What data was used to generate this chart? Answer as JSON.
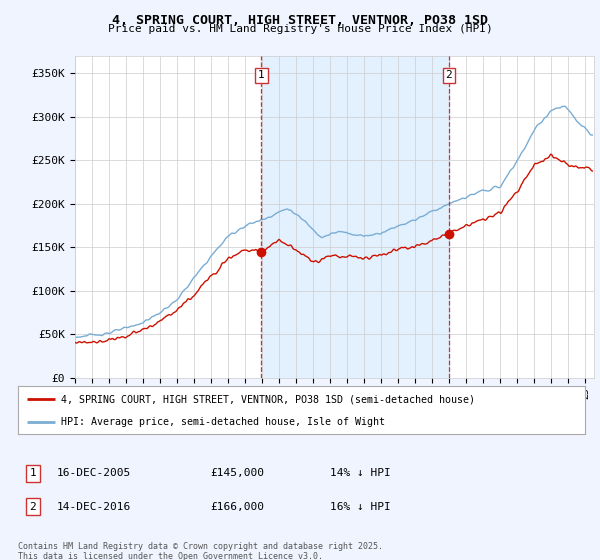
{
  "title": "4, SPRING COURT, HIGH STREET, VENTNOR, PO38 1SD",
  "subtitle": "Price paid vs. HM Land Registry's House Price Index (HPI)",
  "ylabel_ticks": [
    "£0",
    "£50K",
    "£100K",
    "£150K",
    "£200K",
    "£250K",
    "£300K",
    "£350K"
  ],
  "ytick_values": [
    0,
    50000,
    100000,
    150000,
    200000,
    250000,
    300000,
    350000
  ],
  "ylim": [
    0,
    370000
  ],
  "xlim_start": 1995.0,
  "xlim_end": 2025.5,
  "hpi_color": "#7aadd4",
  "hpi_fill_color": "#ddeeff",
  "price_color": "#cc1100",
  "dashed_color": "#cc3333",
  "marker1_year": 2005.96,
  "marker1_price": 145000,
  "marker1_label": "1",
  "marker2_year": 2016.96,
  "marker2_price": 166000,
  "marker2_label": "2",
  "legend_line1": "4, SPRING COURT, HIGH STREET, VENTNOR, PO38 1SD (semi-detached house)",
  "legend_line2": "HPI: Average price, semi-detached house, Isle of Wight",
  "sale1_label": "1",
  "sale1_date": "16-DEC-2005",
  "sale1_price": "£145,000",
  "sale1_hpi": "14% ↓ HPI",
  "sale2_label": "2",
  "sale2_date": "14-DEC-2016",
  "sale2_price": "£166,000",
  "sale2_hpi": "16% ↓ HPI",
  "footer": "Contains HM Land Registry data © Crown copyright and database right 2025.\nThis data is licensed under the Open Government Licence v3.0.",
  "bg_color": "#f0f4ff",
  "plot_bg": "#ffffff",
  "grid_color": "#cccccc"
}
